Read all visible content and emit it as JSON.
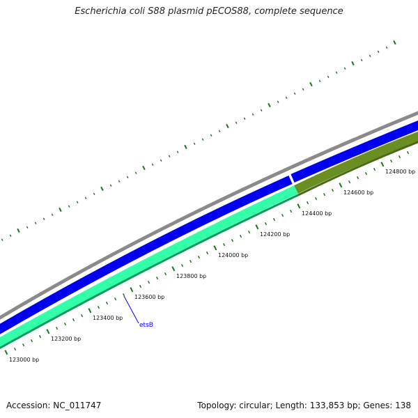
{
  "title": "Escherichia coli S88 plasmid pECOS88, complete sequence",
  "footer": {
    "accession": "Accession: NC_011747",
    "summary": "Topology: circular; Length: 133,853 bp; Genes: 138"
  },
  "colors": {
    "backbone": "#8a8a8a",
    "forward_cds": "#0000ee",
    "reverse_cds": "#33ffaa",
    "reverse_other": "#6b8e23",
    "ticks": "#1a7a1a",
    "gene_label": "#0000ff"
  },
  "map": {
    "ticks": [
      {
        "bp": 123000,
        "label": "123000 bp"
      },
      {
        "bp": 123200,
        "label": "123200 bp"
      },
      {
        "bp": 123400,
        "label": "123400 bp"
      },
      {
        "bp": 123600,
        "label": "123600 bp"
      },
      {
        "bp": 123800,
        "label": "123800 bp"
      },
      {
        "bp": 124000,
        "label": "124000 bp"
      },
      {
        "bp": 124200,
        "label": "124200 bp"
      },
      {
        "bp": 124400,
        "label": "124400 bp"
      },
      {
        "bp": 124600,
        "label": "124600 bp"
      },
      {
        "bp": 124800,
        "label": "124800 bp"
      }
    ],
    "gene_label": "etsB"
  }
}
